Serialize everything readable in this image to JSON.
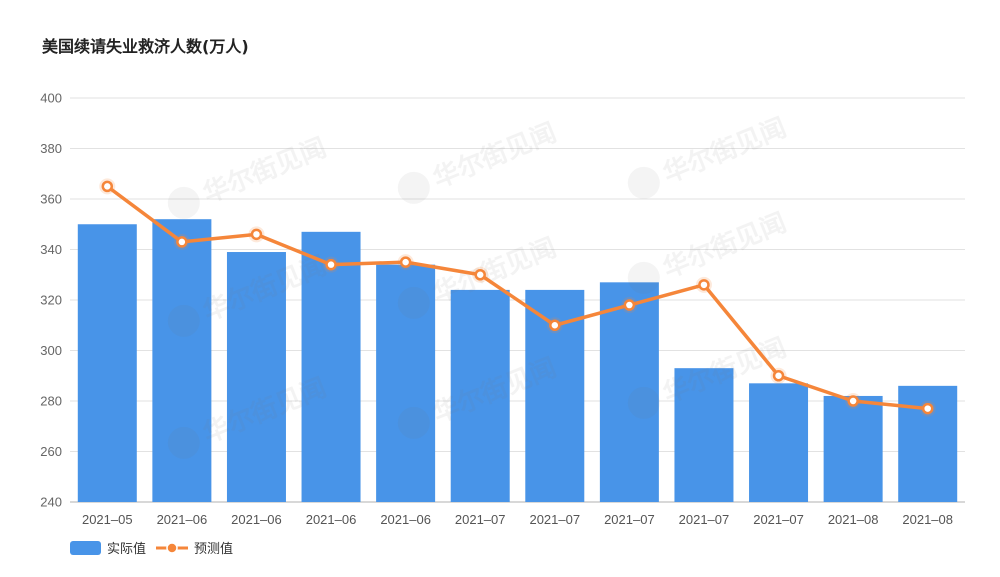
{
  "chart_data": {
    "type": "bar",
    "title": "美国续请失业救济人数(万人)",
    "categories": [
      "2021–05",
      "2021–06",
      "2021–06",
      "2021–06",
      "2021–06",
      "2021–07",
      "2021–07",
      "2021–07",
      "2021–07",
      "2021–07",
      "2021–08",
      "2021–08"
    ],
    "series": [
      {
        "name": "实际值",
        "type": "bar",
        "values": [
          350,
          352,
          339,
          347,
          334,
          324,
          324,
          327,
          293,
          287,
          282,
          286
        ]
      },
      {
        "name": "预测值",
        "type": "line",
        "values": [
          365,
          343,
          346,
          334,
          335,
          330,
          310,
          318,
          326,
          290,
          280,
          277
        ]
      }
    ],
    "xlabel": "",
    "ylabel": "",
    "ylim": [
      240,
      400
    ],
    "yticks": [
      240,
      260,
      280,
      300,
      320,
      340,
      360,
      380,
      400
    ],
    "grid": true,
    "legend": "bottom-left",
    "colors": {
      "bar": "#4894e8",
      "line": "#f5863a",
      "grid": "#e2e2e2",
      "axis": "#b0b0b0"
    }
  },
  "watermark": "华尔街见闻"
}
